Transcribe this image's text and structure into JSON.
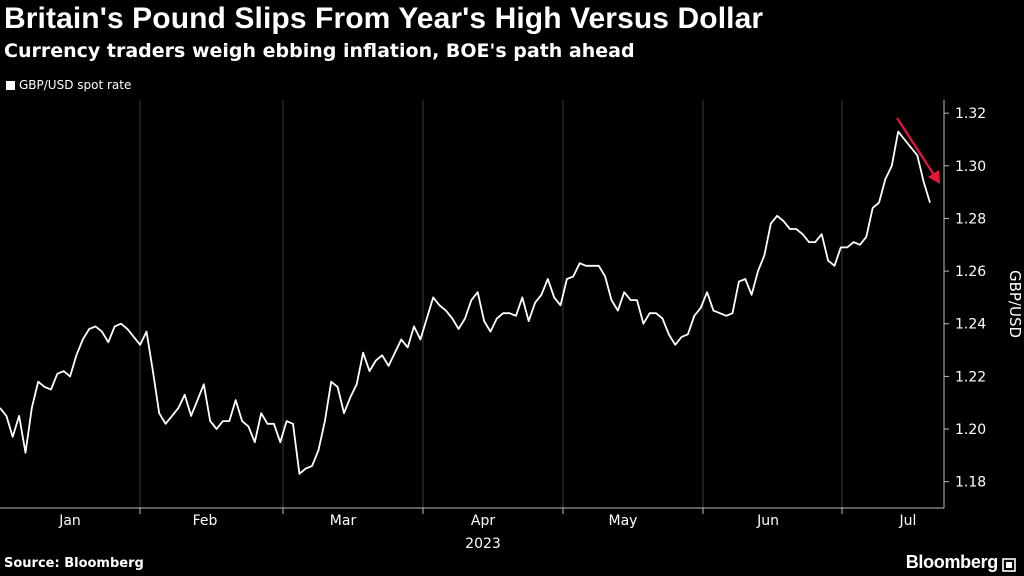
{
  "header": {
    "title": "Britain's Pound Slips From Year's High Versus Dollar",
    "subtitle": "Currency traders weigh ebbing inflation, BOE's path ahead"
  },
  "footer": {
    "source": "Source: Bloomberg",
    "logo_text": "Bloomberg"
  },
  "chart_data": {
    "type": "line",
    "legend": [
      "GBP/USD spot rate"
    ],
    "legend_placement": "top-left",
    "ylabel": "GBP/USD",
    "year_label": "2023",
    "x_ticks": [
      "Jan",
      "Feb",
      "Mar",
      "Apr",
      "May",
      "Jun",
      "Jul"
    ],
    "ylim": [
      1.17,
      1.325
    ],
    "y_ticks": [
      1.18,
      1.2,
      1.22,
      1.24,
      1.26,
      1.28,
      1.3,
      1.32
    ],
    "y_tick_labels": [
      "1.18",
      "1.20",
      "1.22",
      "1.24",
      "1.26",
      "1.28",
      "1.30",
      "1.32"
    ],
    "grid": "vertical",
    "line_color": "#ffffff",
    "arrow_color": "#e8173a",
    "annotation": "red arrow pointing down from July high",
    "series": [
      {
        "name": "GBP/USD spot rate",
        "values": [
          1.208,
          1.205,
          1.197,
          1.205,
          1.191,
          1.208,
          1.218,
          1.216,
          1.215,
          1.221,
          1.222,
          1.22,
          1.228,
          1.234,
          1.238,
          1.239,
          1.237,
          1.233,
          1.239,
          1.24,
          1.238,
          1.235,
          1.232,
          1.237,
          1.222,
          1.206,
          1.202,
          1.205,
          1.208,
          1.213,
          1.205,
          1.211,
          1.217,
          1.203,
          1.2,
          1.203,
          1.203,
          1.211,
          1.203,
          1.201,
          1.195,
          1.206,
          1.202,
          1.202,
          1.195,
          1.203,
          1.202,
          1.183,
          1.185,
          1.186,
          1.192,
          1.203,
          1.218,
          1.216,
          1.206,
          1.212,
          1.217,
          1.229,
          1.222,
          1.226,
          1.228,
          1.224,
          1.229,
          1.234,
          1.231,
          1.239,
          1.234,
          1.242,
          1.25,
          1.247,
          1.245,
          1.242,
          1.238,
          1.242,
          1.249,
          1.252,
          1.241,
          1.237,
          1.242,
          1.244,
          1.244,
          1.243,
          1.25,
          1.241,
          1.248,
          1.251,
          1.257,
          1.25,
          1.247,
          1.257,
          1.258,
          1.263,
          1.262,
          1.262,
          1.262,
          1.258,
          1.249,
          1.245,
          1.252,
          1.249,
          1.249,
          1.24,
          1.244,
          1.244,
          1.242,
          1.236,
          1.232,
          1.235,
          1.236,
          1.243,
          1.246,
          1.252,
          1.245,
          1.244,
          1.243,
          1.244,
          1.256,
          1.257,
          1.251,
          1.26,
          1.266,
          1.278,
          1.281,
          1.279,
          1.276,
          1.276,
          1.274,
          1.271,
          1.271,
          1.274,
          1.264,
          1.262,
          1.269,
          1.269,
          1.271,
          1.27,
          1.273,
          1.284,
          1.286,
          1.295,
          1.3,
          1.313,
          1.31,
          1.307,
          1.304,
          1.294,
          1.286
        ]
      }
    ]
  }
}
